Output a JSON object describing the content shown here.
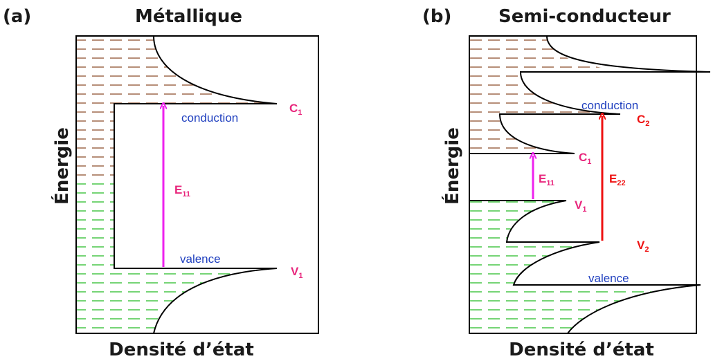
{
  "colors": {
    "magenta": "#ee22ee",
    "pink_label": "#e8267c",
    "red": "#ee1111",
    "blue_label": "#1f3fbf",
    "brown": "#8b4a26",
    "green": "#22bb22",
    "line": "#000000"
  },
  "panel_a": {
    "tag": "(a)",
    "title": "Métallique",
    "ylabel": "Énergie",
    "xlabel": "Densité d’état",
    "band_top": "conduction",
    "band_bottom": "valence",
    "c1": {
      "main": "C",
      "sub": "1"
    },
    "v1": {
      "main": "V",
      "sub": "1"
    },
    "e11": {
      "main": "E",
      "sub": "11"
    }
  },
  "panel_b": {
    "tag": "(b)",
    "title": "Semi-conducteur",
    "ylabel": "Énergie",
    "xlabel": "Densité d’état",
    "band_top": "conduction",
    "band_bottom": "valence",
    "c1": {
      "main": "C",
      "sub": "1"
    },
    "c2": {
      "main": "C",
      "sub": "2"
    },
    "v1": {
      "main": "V",
      "sub": "1"
    },
    "v2": {
      "main": "V",
      "sub": "2"
    },
    "e11": {
      "main": "E",
      "sub": "11"
    },
    "e22": {
      "main": "E",
      "sub": "22"
    }
  }
}
